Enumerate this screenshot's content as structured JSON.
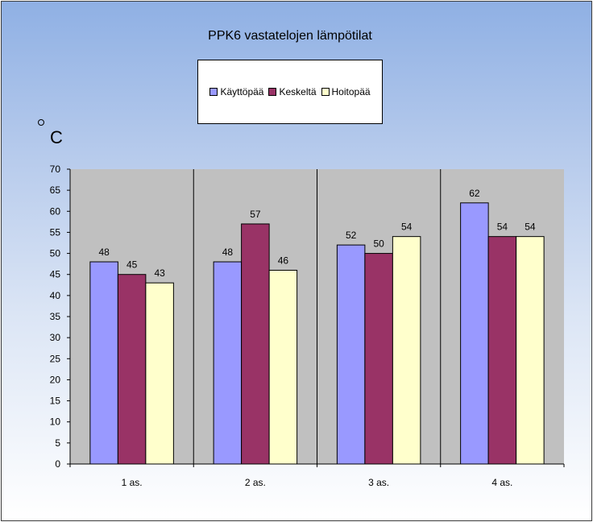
{
  "chart_data": {
    "type": "bar",
    "title": "PPK6 vastatelojen lämpötilat",
    "unit_label": "C",
    "categories": [
      "1 as.",
      "2 as.",
      "3 as.",
      "4 as."
    ],
    "series": [
      {
        "name": "Käyttöpää",
        "values": [
          48,
          48,
          52,
          62
        ],
        "color": "#9999ff"
      },
      {
        "name": "Keskeltä",
        "values": [
          45,
          57,
          50,
          54
        ],
        "color": "#993366"
      },
      {
        "name": "Hoitopää",
        "values": [
          43,
          46,
          54,
          54
        ],
        "color": "#ffffcc"
      }
    ],
    "ylim": [
      0,
      70
    ],
    "yticks": [
      0,
      5,
      10,
      15,
      20,
      25,
      30,
      35,
      40,
      45,
      50,
      55,
      60,
      65,
      70
    ],
    "data_labels": true,
    "plot_background": "#c0c0c0",
    "legend_position": "top"
  }
}
